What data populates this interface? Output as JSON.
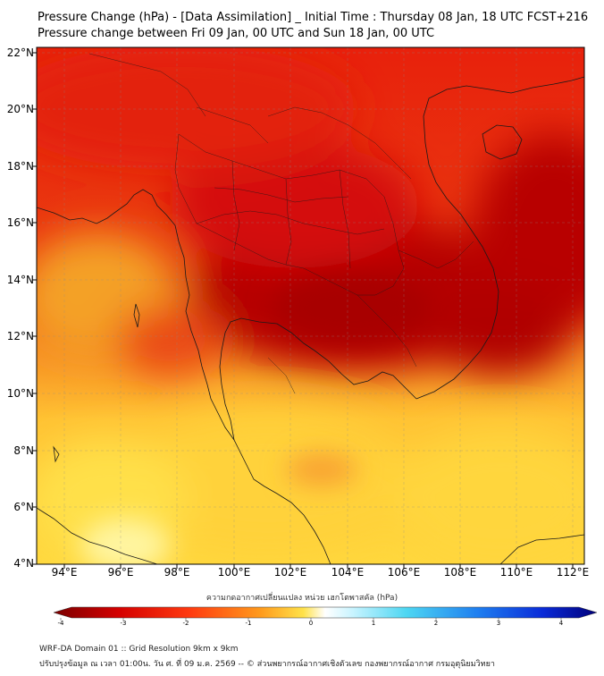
{
  "header": {
    "title_line1": "Pressure Change (hPa) - [Data Assimilation] _ Initial Time : Thursday 08 Jan, 18 UTC FCST+216",
    "title_line2": "Pressure change between Fri 09 Jan, 00 UTC and Sun 18 Jan, 00 UTC"
  },
  "map": {
    "lat_ticks": [
      "22°N",
      "20°N",
      "18°N",
      "16°N",
      "14°N",
      "12°N",
      "10°N",
      "8°N",
      "6°N",
      "4°N"
    ],
    "lon_ticks": [
      "94°E",
      "96°E",
      "98°E",
      "100°E",
      "102°E",
      "104°E",
      "106°E",
      "108°E",
      "110°E",
      "112°E"
    ],
    "colors": {
      "background_mid": "#f07a1e",
      "deep_red": "#b80000",
      "yellow": "#ffd43a",
      "pale": "#fff7a8"
    }
  },
  "colorbar": {
    "label": "ความกดอากาศเปลี่ยนแปลง หน่วย เฮกโตพาสคัล (hPa)",
    "ticks": [
      "-4",
      "-3",
      "-2",
      "-1",
      "0",
      "1",
      "2",
      "3",
      "4"
    ]
  },
  "footer": {
    "line1": "WRF-DA Domain 01 :: Grid Resolution 9km x 9km",
    "line2": "ปรับปรุงข้อมูล ณ เวลา 01:00น. วัน ศ. ที่ 09 ม.ค. 2569 -- © ส่วนพยากรณ์อากาศเชิงตัวเลข กองพยากรณ์อากาศ กรมอุตุนิยมวิทยา"
  }
}
